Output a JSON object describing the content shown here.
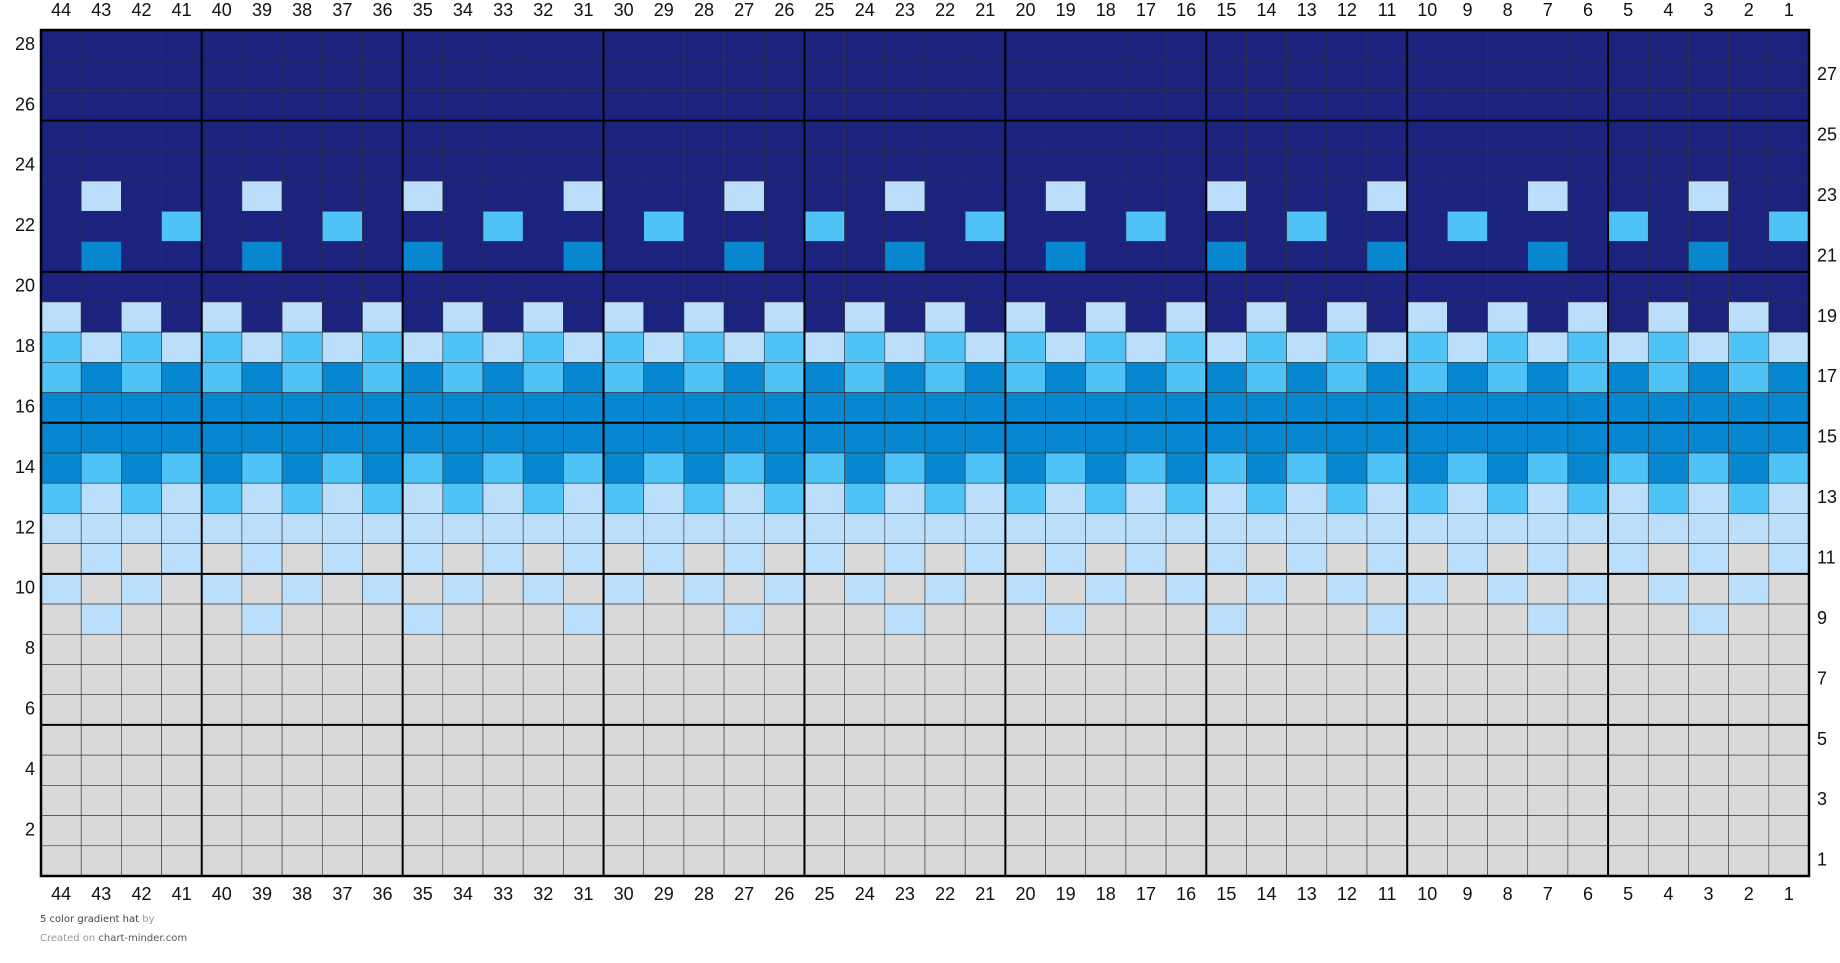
{
  "chart": {
    "column_labels": [
      44,
      43,
      42,
      41,
      40,
      39,
      38,
      37,
      36,
      35,
      34,
      33,
      32,
      31,
      30,
      29,
      28,
      27,
      26,
      25,
      24,
      23,
      22,
      21,
      20,
      19,
      18,
      17,
      16,
      15,
      14,
      13,
      12,
      11,
      10,
      9,
      8,
      7,
      6,
      5,
      4,
      3,
      2,
      1
    ],
    "row_labels": [
      28,
      27,
      26,
      25,
      24,
      23,
      22,
      21,
      20,
      19,
      18,
      17,
      16,
      15,
      14,
      13,
      12,
      11,
      10,
      9,
      8,
      7,
      6,
      5,
      4,
      3,
      2,
      1
    ],
    "palette": {
      "D": "#1b237e",
      "M": "#0787cf",
      "L": "#4fc2f6",
      "P": "#bbdefa",
      "G": "#d9d9d9"
    },
    "rows": [
      "DDDDDDDDDDDDDDDDDDDDDDDDDDDDDDDDDDDDDDDDDDDD",
      "DDDDDDDDDDDDDDDDDDDDDDDDDDDDDDDDDDDDDDDDDDDD",
      "DDDDDDDDDDDDDDDDDDDDDDDDDDDDDDDDDDDDDDDDDDDD",
      "DDDDDDDDDDDDDDDDDDDDDDDDDDDDDDDDDDDDDDDDDDDD",
      "DDDDDDDDDDDDDDDDDDDDDDDDDDDDDDDDDDDDDDDDDDDD",
      "DPDDDPDDDPDDDPDDDPDDDPDDDPDDDPDDDPDDDPDDDPDD",
      "DDDLDDDLDDDLDDDLDDDLDDDLDDDLDDDLDDDLDDDLDDDL",
      "DMDDDMDDDMDDDMDDDMDDDMDDDMDDDMDDDMDDDMDDDMDD",
      "DDDDDDDDDDDDDDDDDDDDDDDDDDDDDDDDDDDDDDDDDDDD",
      "PDPDPDPDPDPDPDPDPDPDPDPDPDPDPDPDPDPDPDPDPDPD",
      "LPLPLPLPLPLPLPLPLPLPLPLPLPLPLPLPLPLPLPLPLPLP",
      "LMLMLMLMLMLMLMLMLMLMLMLMLMLMLMLMLMLMLMLMLMLM",
      "MMMMMMMMMMMMMMMMMMMMMMMMMMMMMMMMMMMMMMMMMMMM",
      "MMMMMMMMMMMMMMMMMMMMMMMMMMMMMMMMMMMMMMMMMMMM",
      "MLMLMLMLMLMLMLMLMLMLMLMLMLMLMLMLMLMLMLMLMLML",
      "LPLPLPLPLPLPLPLPLPLPLPLPLPLPLPLPLPLPLPLPLPLP",
      "PPPPPPPPPPPPPPPPPPPPPPPPPPPPPPPPPPPPPPPPPPPP",
      "GPGPGPGPGPGPGPGPGPGPGPGPGPGPGPGPGPGPGPGPGPGP",
      "PGPGPGPGPGPGPGPGPGPGPGPGPGPGPGPGPGPGPGPGPGPG",
      "GPGGGPGGGPGGGPGGGPGGGPGGGPGGGPGGGPGGGPGGGPGG",
      "GGGGGGGGGGGGGGGGGGGGGGGGGGGGGGGGGGGGGGGGGGGG",
      "GGGGGGGGGGGGGGGGGGGGGGGGGGGGGGGGGGGGGGGGGGGG",
      "GGGGGGGGGGGGGGGGGGGGGGGGGGGGGGGGGGGGGGGGGGGG",
      "GGGGGGGGGGGGGGGGGGGGGGGGGGGGGGGGGGGGGGGGGGGG",
      "GGGGGGGGGGGGGGGGGGGGGGGGGGGGGGGGGGGGGGGGGGGG",
      "GGGGGGGGGGGGGGGGGGGGGGGGGGGGGGGGGGGGGGGGGGGG",
      "GGGGGGGGGGGGGGGGGGGGGGGGGGGGGGGGGGGGGGGGGGGG",
      "GGGGGGGGGGGGGGGGGGGGGGGGGGGGGGGGGGGGGGGGGGGG"
    ]
  },
  "footer": {
    "title": "5 color gradient hat",
    "by": "by",
    "created": "Created on",
    "site": "chart-minder.com"
  }
}
